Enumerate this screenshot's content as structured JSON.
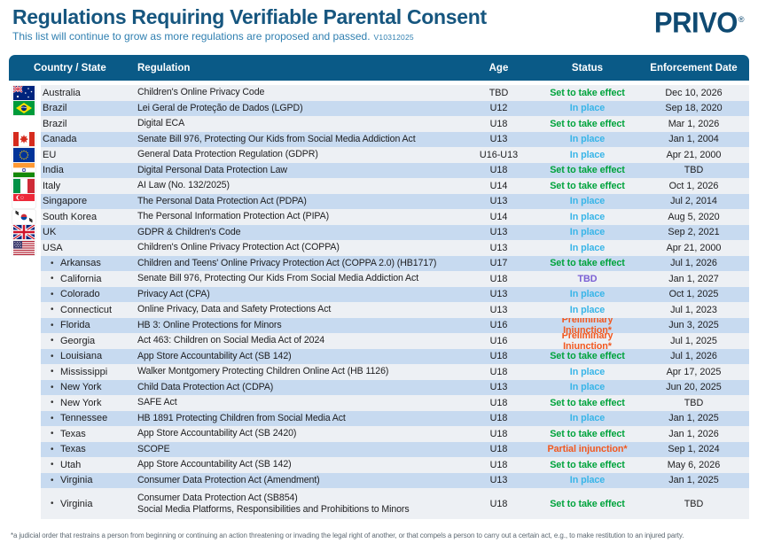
{
  "header": {
    "title": "Regulations Requiring Verifiable Parental Consent",
    "subtitle": "This list will continue to grow as more regulations are proposed and passed.",
    "version": "V10312025",
    "logo": "PRIVO",
    "logo_mark": "®"
  },
  "colors": {
    "title": "#16567f",
    "subtitle": "#2f7fb0",
    "logo": "#0f4a72",
    "headbar": "#0a5a87",
    "row_light": "#edf0f4",
    "row_blue": "#c7daf0",
    "status": {
      "effect": "#00a33c",
      "inplace": "#38b5e8",
      "tbd": "#7a5fd4",
      "injunction": "#f2581f"
    }
  },
  "table": {
    "columns": [
      "Country / State",
      "Regulation",
      "Age",
      "Status",
      "Enforcement Date"
    ],
    "rows": [
      {
        "flag": "australia",
        "state": false,
        "name": "Australia",
        "regulation": "Children's Online Privacy Code",
        "regulation2": "",
        "age": "TBD",
        "status": "Set to take effect",
        "status_type": "effect",
        "date": "Dec 10, 2026"
      },
      {
        "flag": "brazil",
        "state": false,
        "name": "Brazil",
        "regulation": "Lei Geral de Proteção de Dados (LGPD)",
        "regulation2": "",
        "age": "U12",
        "status": "In place",
        "status_type": "inplace",
        "date": "Sep 18, 2020"
      },
      {
        "flag": "",
        "state": false,
        "name": "Brazil",
        "regulation": "Digital ECA",
        "regulation2": "",
        "age": "U18",
        "status": "Set to take effect",
        "status_type": "effect",
        "date": "Mar 1, 2026"
      },
      {
        "flag": "canada",
        "state": false,
        "name": "Canada",
        "regulation": "Senate Bill 976, Protecting Our Kids from Social Media Addiction Act",
        "regulation2": "",
        "age": "U13",
        "status": "In place",
        "status_type": "inplace",
        "date": "Jan 1, 2004"
      },
      {
        "flag": "eu",
        "state": false,
        "name": "EU",
        "regulation": "General Data Protection Regulation (GDPR)",
        "regulation2": "",
        "age": "U16-U13",
        "status": "In place",
        "status_type": "inplace",
        "date": "Apr 21, 2000"
      },
      {
        "flag": "india",
        "state": false,
        "name": "India",
        "regulation": "Digital Personal Data Protection Law",
        "regulation2": "",
        "age": "U18",
        "status": "Set to take effect",
        "status_type": "effect",
        "date": "TBD"
      },
      {
        "flag": "italy",
        "state": false,
        "name": "Italy",
        "regulation": "AI Law (No. 132/2025)",
        "regulation2": "",
        "age": "U14",
        "status": "Set to take effect",
        "status_type": "effect",
        "date": "Oct 1, 2026"
      },
      {
        "flag": "singapore",
        "state": false,
        "name": "Singapore",
        "regulation": "The Personal Data Protection Act (PDPA)",
        "regulation2": "",
        "age": "U13",
        "status": "In place",
        "status_type": "inplace",
        "date": "Jul 2, 2014"
      },
      {
        "flag": "south-korea",
        "state": false,
        "name": "South Korea",
        "regulation": "The Personal Information Protection Act (PIPA)",
        "regulation2": "",
        "age": "U14",
        "status": "In place",
        "status_type": "inplace",
        "date": "Aug 5, 2020"
      },
      {
        "flag": "uk",
        "state": false,
        "name": "UK",
        "regulation": "GDPR & Children's Code",
        "regulation2": "",
        "age": "U13",
        "status": "In place",
        "status_type": "inplace",
        "date": "Sep 2, 2021"
      },
      {
        "flag": "usa",
        "state": false,
        "name": "USA",
        "regulation": "Children's Online Privacy Protection Act (COPPA)",
        "regulation2": "",
        "age": "U13",
        "status": "In place",
        "status_type": "inplace",
        "date": "Apr 21, 2000"
      },
      {
        "flag": "",
        "state": true,
        "name": "Arkansas",
        "regulation": "Children and Teens' Online Privacy Protection Act (COPPA 2.0) (HB1717)",
        "regulation2": "",
        "age": "U17",
        "status": "Set to take effect",
        "status_type": "effect",
        "date": "Jul 1, 2026"
      },
      {
        "flag": "",
        "state": true,
        "name": "California",
        "regulation": "Senate Bill 976, Protecting Our Kids From Social Media Addiction Act",
        "regulation2": "",
        "age": "U18",
        "status": "TBD",
        "status_type": "tbd",
        "date": "Jan 1, 2027"
      },
      {
        "flag": "",
        "state": true,
        "name": "Colorado",
        "regulation": "Privacy Act (CPA)",
        "regulation2": "",
        "age": "U13",
        "status": "In place",
        "status_type": "inplace",
        "date": "Oct 1, 2025"
      },
      {
        "flag": "",
        "state": true,
        "name": "Connecticut",
        "regulation": "Online Privacy, Data and Safety Protections Act",
        "regulation2": "",
        "age": "U13",
        "status": "In place",
        "status_type": "inplace",
        "date": "Jul 1, 2023"
      },
      {
        "flag": "",
        "state": true,
        "name": "Florida",
        "regulation": "HB 3: Online Protections for Minors",
        "regulation2": "",
        "age": "U16",
        "status": "Preliminary Injunction*",
        "status_type": "injunction",
        "date": "Jun 3, 2025"
      },
      {
        "flag": "",
        "state": true,
        "name": "Georgia",
        "regulation": "Act 463: Children on Social Media Act of 2024",
        "regulation2": "",
        "age": "U16",
        "status": "Preliminary Injunction*",
        "status_type": "injunction",
        "date": "Jul 1, 2025"
      },
      {
        "flag": "",
        "state": true,
        "name": "Louisiana",
        "regulation": "App Store Accountability Act (SB 142)",
        "regulation2": "",
        "age": "U18",
        "status": "Set to take effect",
        "status_type": "effect",
        "date": "Jul 1, 2026"
      },
      {
        "flag": "",
        "state": true,
        "name": "Mississippi",
        "regulation": "Walker Montgomery Protecting Children Online Act (HB 1126)",
        "regulation2": "",
        "age": "U18",
        "status": "In place",
        "status_type": "inplace",
        "date": "Apr 17, 2025"
      },
      {
        "flag": "",
        "state": true,
        "name": "New York",
        "regulation": "Child Data Protection Act (CDPA)",
        "regulation2": "",
        "age": "U13",
        "status": "In place",
        "status_type": "inplace",
        "date": "Jun 20, 2025"
      },
      {
        "flag": "",
        "state": true,
        "name": "New York",
        "regulation": "SAFE Act",
        "regulation2": "",
        "age": "U18",
        "status": "Set to take effect",
        "status_type": "effect",
        "date": "TBD"
      },
      {
        "flag": "",
        "state": true,
        "name": "Tennessee",
        "regulation": "HB 1891 Protecting Children from Social Media Act",
        "regulation2": "",
        "age": "U18",
        "status": "In place",
        "status_type": "inplace",
        "date": "Jan 1, 2025"
      },
      {
        "flag": "",
        "state": true,
        "name": "Texas",
        "regulation": "App Store Accountability Act (SB 2420)",
        "regulation2": "",
        "age": "U18",
        "status": "Set to take effect",
        "status_type": "effect",
        "date": "Jan 1, 2026"
      },
      {
        "flag": "",
        "state": true,
        "name": "Texas",
        "regulation": "SCOPE",
        "regulation2": "",
        "age": "U18",
        "status": "Partial injunction*",
        "status_type": "injunction",
        "date": "Sep 1, 2024"
      },
      {
        "flag": "",
        "state": true,
        "name": "Utah",
        "regulation": "App Store Accountability Act (SB 142)",
        "regulation2": "",
        "age": "U18",
        "status": "Set to take effect",
        "status_type": "effect",
        "date": "May 6, 2026"
      },
      {
        "flag": "",
        "state": true,
        "name": "Virginia",
        "regulation": "Consumer Data Protection Act (Amendment)",
        "regulation2": "",
        "age": "U13",
        "status": "In place",
        "status_type": "inplace",
        "date": "Jan 1, 2025"
      },
      {
        "flag": "",
        "state": true,
        "name": "Virginia",
        "regulation": "Consumer Data Protection Act (SB854)",
        "regulation2": "Social Media Platforms, Responsibilities and Prohibitions to Minors",
        "age": "U18",
        "status": "Set to take effect",
        "status_type": "effect",
        "date": "TBD"
      }
    ]
  },
  "footnote": "*a judicial order that restrains a person from beginning or continuing an action threatening or invading the legal right of another, or that compels a person to carry out a certain act, e.g., to make restitution to an injured party."
}
